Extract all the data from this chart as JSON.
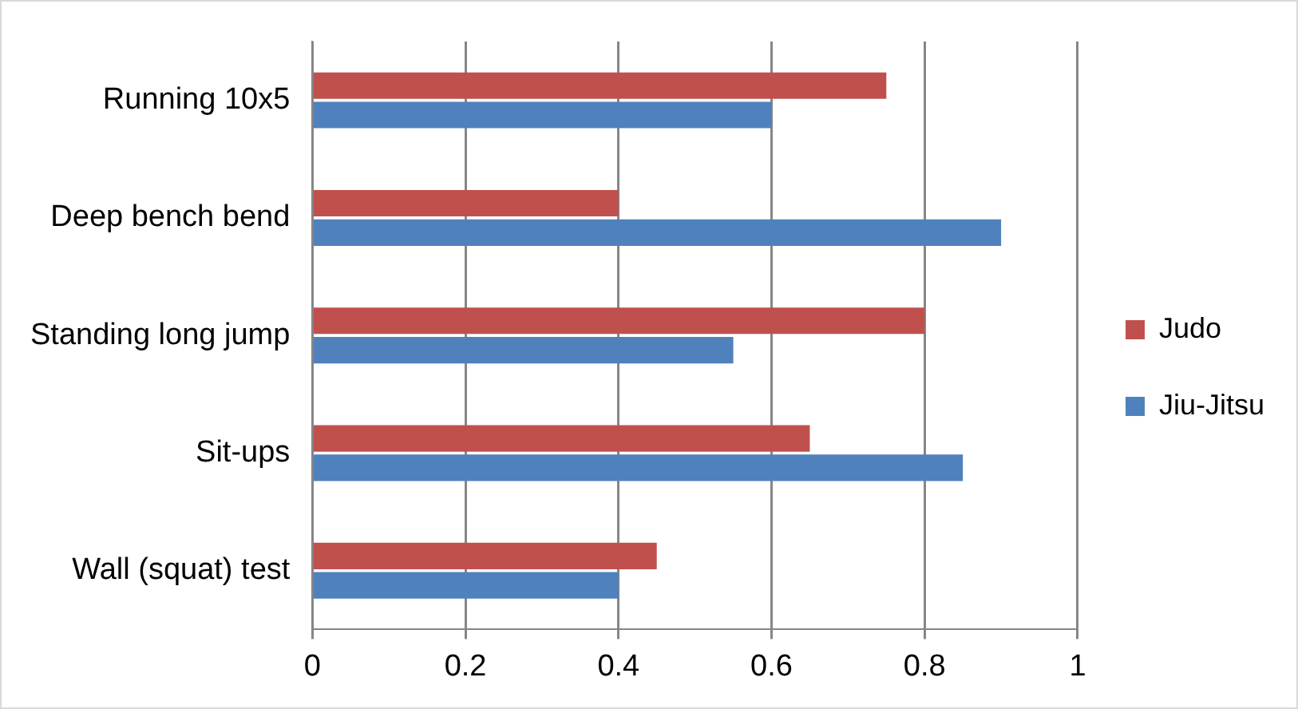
{
  "chart_data": {
    "type": "bar",
    "orientation": "horizontal",
    "categories": [
      "Running 10x5",
      "Deep bench bend",
      "Standing long jump",
      "Sit-ups",
      "Wall (squat) test"
    ],
    "series": [
      {
        "name": "Judo",
        "color": "#c0504d",
        "values": [
          0.75,
          0.4,
          0.8,
          0.65,
          0.45
        ]
      },
      {
        "name": "Jiu-Jitsu",
        "color": "#4f81bd",
        "values": [
          0.6,
          0.9,
          0.55,
          0.85,
          0.4
        ]
      }
    ],
    "xlim": [
      0,
      1
    ],
    "xticks": [
      0,
      0.2,
      0.4,
      0.6,
      0.8,
      1
    ],
    "grid": "x",
    "legend": "right"
  }
}
